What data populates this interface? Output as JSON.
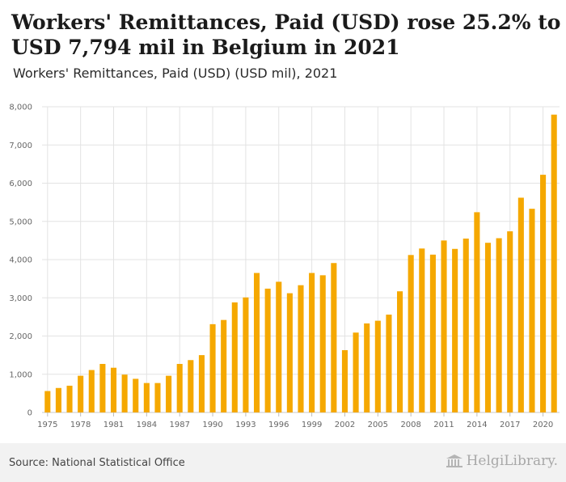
{
  "header": {
    "title": "Workers' Remittances, Paid (USD) rose 25.2% to USD 7,794 mil in Belgium in 2021",
    "subtitle": "Workers' Remittances, Paid (USD) (USD mil), 2021"
  },
  "footer": {
    "source": "Source: National Statistical Office",
    "brand": "HelgiLibrary."
  },
  "colors": {
    "bar": "#f5a800",
    "grid": "#e3e3e3",
    "axis_text": "#666666"
  },
  "chart_data": {
    "type": "bar",
    "x": [
      1975,
      1976,
      1977,
      1978,
      1979,
      1980,
      1981,
      1982,
      1983,
      1984,
      1985,
      1986,
      1987,
      1988,
      1989,
      1990,
      1991,
      1992,
      1993,
      1994,
      1995,
      1996,
      1997,
      1998,
      1999,
      2000,
      2001,
      2002,
      2003,
      2004,
      2005,
      2006,
      2007,
      2008,
      2009,
      2010,
      2011,
      2012,
      2013,
      2014,
      2015,
      2016,
      2017,
      2018,
      2019,
      2020,
      2021
    ],
    "values": [
      560,
      640,
      700,
      960,
      1110,
      1270,
      1170,
      990,
      880,
      770,
      770,
      960,
      1270,
      1370,
      1500,
      2310,
      2420,
      2880,
      3010,
      3650,
      3240,
      3420,
      3120,
      3330,
      3650,
      3590,
      3910,
      1630,
      2090,
      2330,
      2400,
      2560,
      3170,
      4120,
      4290,
      4130,
      4500,
      4280,
      4550,
      5240,
      4440,
      4560,
      4740,
      5620,
      5330,
      6220,
      7794
    ],
    "x_tick_labels": [
      "1975",
      "1978",
      "1981",
      "1984",
      "1987",
      "1990",
      "1993",
      "1996",
      "1999",
      "2002",
      "2005",
      "2008",
      "2011",
      "2014",
      "2017",
      "2020"
    ],
    "y_ticks": [
      0,
      1000,
      2000,
      3000,
      4000,
      5000,
      6000,
      7000,
      8000
    ],
    "y_tick_labels": [
      "0",
      "1,000",
      "2,000",
      "3,000",
      "4,000",
      "5,000",
      "6,000",
      "7,000",
      "8,000"
    ],
    "ylim": [
      0,
      8000
    ],
    "grid": true,
    "legend": "none"
  }
}
